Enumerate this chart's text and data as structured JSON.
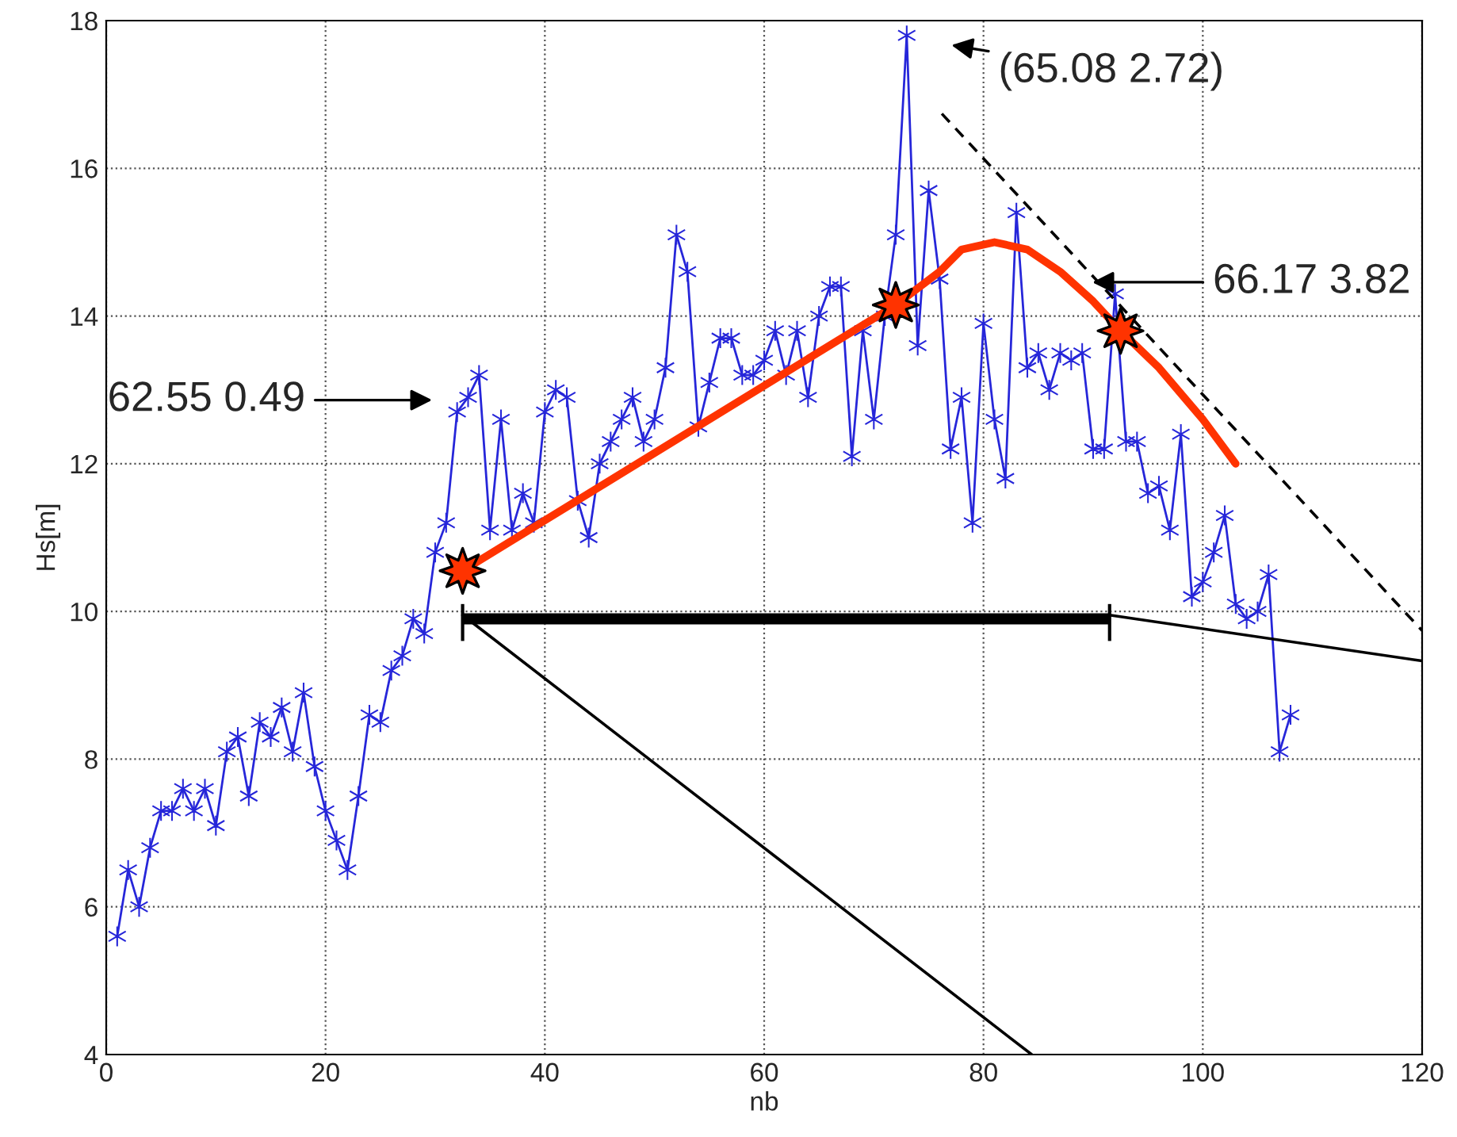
{
  "chart_data": {
    "type": "line",
    "xlabel": "nb",
    "ylabel": "Hs[m]",
    "xlim": [
      0,
      120
    ],
    "xticks": [
      0,
      20,
      40,
      60,
      80,
      100,
      120
    ],
    "ylim": [
      4,
      18
    ],
    "yticks": [
      4,
      6,
      8,
      10,
      12,
      14,
      16,
      18
    ],
    "grid": true,
    "series": [
      {
        "color": "#2626d9",
        "marker": "cross",
        "line_style": "solid",
        "x": [
          1,
          2,
          3,
          4,
          5,
          6,
          7,
          8,
          9,
          10,
          11,
          12,
          13,
          14,
          15,
          16,
          17,
          18,
          19,
          20,
          21,
          22,
          23,
          24,
          25,
          26,
          27,
          28,
          29,
          30,
          31,
          32,
          33,
          34,
          35,
          36,
          37,
          38,
          39,
          40,
          41,
          42,
          43,
          44,
          45,
          46,
          47,
          48,
          49,
          50,
          51,
          52,
          53,
          54,
          55,
          56,
          57,
          58,
          59,
          60,
          61,
          62,
          63,
          64,
          65,
          66,
          67,
          68,
          69,
          70,
          71,
          72,
          73,
          74,
          75,
          76,
          77,
          78,
          79,
          80,
          81,
          82,
          83,
          84,
          85,
          86,
          87,
          88,
          89,
          90,
          91,
          92,
          93,
          94,
          95,
          96,
          97,
          98,
          99,
          100,
          101,
          102,
          103,
          104,
          105,
          106,
          107,
          108
        ],
        "values": [
          5.6,
          6.5,
          6.0,
          6.8,
          7.3,
          7.3,
          7.6,
          7.3,
          7.6,
          7.1,
          8.1,
          8.3,
          7.5,
          8.5,
          8.3,
          8.7,
          8.1,
          8.9,
          7.9,
          7.3,
          6.9,
          6.5,
          7.5,
          8.6,
          8.5,
          9.2,
          9.4,
          9.9,
          9.7,
          10.8,
          11.2,
          12.7,
          12.9,
          13.2,
          11.1,
          12.6,
          11.1,
          11.6,
          11.2,
          12.7,
          13.0,
          12.9,
          11.5,
          11.0,
          12.0,
          12.3,
          12.6,
          12.9,
          12.3,
          12.6,
          13.3,
          15.1,
          14.6,
          12.5,
          13.1,
          13.7,
          13.7,
          13.2,
          13.2,
          13.4,
          13.8,
          13.2,
          13.8,
          12.9,
          14.0,
          14.4,
          14.4,
          12.1,
          13.8,
          12.6,
          14.0,
          15.1,
          17.8,
          13.6,
          15.7,
          14.5,
          12.2,
          12.9,
          11.2,
          13.9,
          12.6,
          11.8,
          15.4,
          13.3,
          13.5,
          13.0,
          13.5,
          13.4,
          13.5,
          12.2,
          12.2,
          14.3,
          12.3,
          12.3,
          11.6,
          11.7,
          11.1,
          12.4,
          10.2,
          10.4,
          10.8,
          11.3,
          10.1,
          9.9,
          10.0,
          10.5,
          8.1,
          8.6
        ]
      },
      {
        "color": "#ff3300",
        "marker": "none",
        "line_style": "solid",
        "x": [
          32.5,
          72,
          76,
          78,
          81,
          84,
          87,
          90,
          92.5,
          96,
          100,
          103
        ],
        "values": [
          10.55,
          14.15,
          14.6,
          14.9,
          15.0,
          14.9,
          14.6,
          14.2,
          13.8,
          13.3,
          12.6,
          12.0
        ]
      },
      {
        "type": "scatter",
        "color": "#ff3300",
        "marker": "star",
        "x": [
          32.5,
          72,
          92.5
        ],
        "values": [
          10.55,
          14.15,
          13.8
        ]
      },
      {
        "color": "#000000",
        "marker": "none",
        "line_style": "solid",
        "x": [
          32.5,
          91.5
        ],
        "values": [
          9.9,
          9.9
        ],
        "errors": [
          [
            9.6,
            10.1
          ],
          [
            9.6,
            10.1
          ]
        ]
      },
      {
        "color": "#000000",
        "marker": "none",
        "line_style": "solid",
        "x": [
          32.5,
          84.4
        ],
        "values": [
          9.95,
          4
        ]
      },
      {
        "color": "#000000",
        "marker": "none",
        "line_style": "solid",
        "x": [
          91.5,
          120
        ],
        "values": [
          9.95,
          9.33
        ]
      },
      {
        "color": "#000000",
        "marker": "none",
        "line_style": "dashed",
        "x": [
          76.2,
          120
        ],
        "values": [
          16.74,
          9.74
        ]
      }
    ],
    "annotations": [
      "(65.08 2.72)",
      "66.17 3.82",
      "62.55 0.49"
    ]
  }
}
